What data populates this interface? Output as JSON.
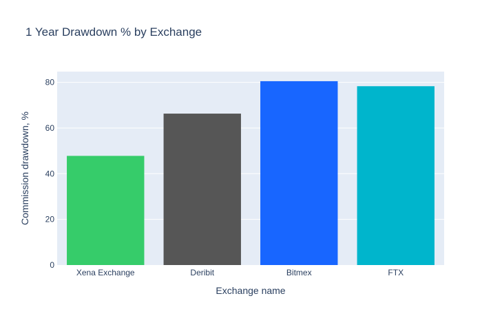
{
  "chart_data": {
    "type": "bar",
    "title": "1 Year Drawdown % by Exchange",
    "xlabel": "Exchange name",
    "ylabel": "Commission drawdown, %",
    "categories": [
      "Xena Exchange",
      "Deribit",
      "Bitmex",
      "FTX"
    ],
    "values": [
      47.8,
      66.3,
      80.5,
      78.3
    ],
    "colors": [
      "#36cc6a",
      "#565656",
      "#1866ff",
      "#00b5cc"
    ],
    "ylim": [
      0,
      84.7
    ],
    "yticks": [
      0,
      20,
      40,
      60,
      80
    ],
    "grid": true,
    "legend": "none",
    "plot_background": "#e5ecf6",
    "text_color": "#2a3f5f"
  }
}
